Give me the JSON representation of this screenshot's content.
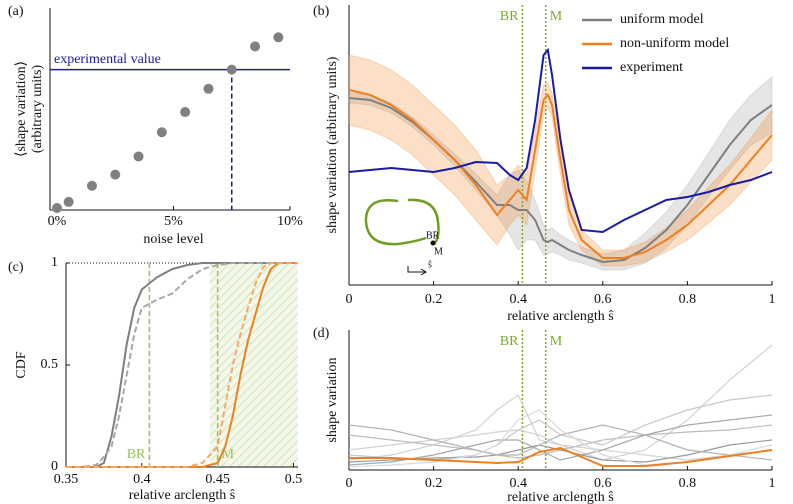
{
  "chart_data": [
    {
      "panel_label": "(a)",
      "type": "scatter",
      "xlabel": "noise level",
      "ylabel": [
        "⟨shape variation⟩",
        "(arbitrary units)"
      ],
      "x": [
        0,
        0.5,
        1.5,
        2.5,
        3.5,
        4.5,
        5.5,
        6.5,
        7.5,
        8.5,
        9.5
      ],
      "values": [
        0.01,
        0.04,
        0.12,
        0.175,
        0.265,
        0.385,
        0.485,
        0.6,
        0.695,
        0.81,
        0.855
      ],
      "color": "#808080",
      "xlim": [
        0,
        10
      ],
      "xticks": [
        {
          "value": 0,
          "label": "0%"
        },
        {
          "value": 5,
          "label": "5%"
        },
        {
          "value": 10,
          "label": "10%"
        }
      ],
      "ylim": [
        0,
        1
      ],
      "reference": {
        "label": "experimental value",
        "value": 0.695,
        "x": 7.5,
        "color": "#1a1aa8"
      }
    },
    {
      "panel_label": "(b)",
      "type": "line",
      "xlabel": "relative arclength ŝ",
      "ylabel": "shape variation (arbitrary units)",
      "x": [
        0,
        0.05,
        0.1,
        0.15,
        0.2,
        0.25,
        0.3,
        0.35,
        0.38,
        0.4,
        0.42,
        0.44,
        0.46,
        0.47,
        0.48,
        0.5,
        0.52,
        0.55,
        0.6,
        0.65,
        0.7,
        0.75,
        0.8,
        0.85,
        0.9,
        0.95,
        1
      ],
      "xlim": [
        0,
        1
      ],
      "xticks": [
        0,
        0.2,
        0.4,
        0.6,
        0.8,
        1
      ],
      "ylim": [
        0,
        28
      ],
      "legend": "upper right",
      "markers": [
        {
          "label": "BR",
          "x": 0.41
        },
        {
          "label": "M",
          "x": 0.465
        }
      ],
      "marker_color": "#7aab2a",
      "inset_labels": [
        "BR",
        "M",
        "ŝ"
      ],
      "series": [
        {
          "name": "uniform model",
          "color": "#7f7f7f",
          "band_color": "rgba(127,127,127,0.2)",
          "values": [
            18.7,
            18.5,
            17.7,
            16.3,
            14.5,
            12.5,
            10.3,
            8.0,
            8.0,
            7.5,
            7.5,
            6.5,
            4.5,
            4.3,
            4.5,
            4.0,
            3.5,
            3.0,
            2.3,
            2.5,
            3.7,
            5.5,
            8.0,
            11.0,
            14.0,
            16.5,
            18.0
          ],
          "band": {
            "upper": [
              19.2,
              19.0,
              18.2,
              16.8,
              15.0,
              13.1,
              11.1,
              9.0,
              11.0,
              11.5,
              10.5,
              8.5,
              6.0,
              5.5,
              5.7,
              5.0,
              4.5,
              3.8,
              3.1,
              3.5,
              5.2,
              7.3,
              10.0,
              13.2,
              16.5,
              19.0,
              20.8
            ],
            "lower": [
              18.2,
              18.0,
              17.2,
              15.8,
              14.0,
              11.9,
              9.5,
              7.0,
              5.0,
              3.5,
              4.5,
              4.5,
              3.0,
              3.1,
              3.3,
              3.0,
              2.5,
              2.2,
              1.5,
              1.5,
              2.2,
              3.7,
              6.0,
              8.8,
              11.5,
              14.0,
              15.2
            ]
          }
        },
        {
          "name": "non-uniform model",
          "color": "#f07f1f",
          "band_color": "rgba(240,127,31,0.25)",
          "values": [
            19.5,
            19.0,
            18.0,
            16.5,
            14.5,
            12.5,
            10.0,
            7.0,
            8.5,
            9.5,
            8.5,
            13.5,
            18.5,
            19.0,
            18.0,
            12.5,
            7.5,
            4.5,
            2.7,
            2.7,
            3.3,
            4.5,
            6.0,
            8.0,
            10.0,
            12.5,
            15.0
          ],
          "band": {
            "upper": [
              23.0,
              22.5,
              21.5,
              20.0,
              18.0,
              16.0,
              13.5,
              10.0,
              11.0,
              12.0,
              11.0,
              15.5,
              20.0,
              20.2,
              19.2,
              14.0,
              9.0,
              5.5,
              3.5,
              3.5,
              4.3,
              5.7,
              7.5,
              9.8,
              12.0,
              14.7,
              17.5
            ],
            "lower": [
              16.0,
              15.5,
              14.5,
              13.0,
              11.0,
              9.0,
              6.5,
              4.0,
              6.0,
              7.0,
              6.0,
              11.5,
              17.0,
              17.8,
              16.8,
              11.0,
              6.0,
              3.5,
              1.9,
              1.9,
              2.3,
              3.3,
              4.5,
              6.2,
              8.0,
              10.3,
              12.5
            ]
          }
        },
        {
          "name": "experiment",
          "color": "#1a1aa8",
          "values": [
            11.3,
            11.5,
            11.7,
            11.5,
            11.3,
            11.7,
            12.3,
            12.2,
            11.0,
            10.5,
            11.7,
            16.5,
            23.0,
            23.5,
            21.0,
            14.5,
            9.5,
            5.5,
            5.3,
            6.5,
            7.5,
            8.5,
            8.8,
            9.3,
            10.0,
            10.5,
            11.3
          ]
        }
      ]
    },
    {
      "panel_label": "(c)",
      "type": "line",
      "xlabel": "relative arclength ŝ",
      "ylabel": "CDF",
      "xlim": [
        0.35,
        0.503
      ],
      "xticks": [
        0.35,
        0.4,
        0.45,
        0.5
      ],
      "ylim": [
        0,
        1
      ],
      "yticks": [
        0,
        0.5,
        1
      ],
      "reference_line": 1,
      "shaded_range": [
        0.445,
        0.503
      ],
      "markers": [
        {
          "label": "BR",
          "x": 0.405
        },
        {
          "label": "M",
          "x": 0.45
        }
      ],
      "marker_color": "#9cc05a",
      "series": [
        {
          "color": "#7f7f7f",
          "x": [
            0.35,
            0.37,
            0.375,
            0.38,
            0.385,
            0.39,
            0.395,
            0.4,
            0.405,
            0.41,
            0.42,
            0.43,
            0.44,
            0.503
          ],
          "values": [
            0,
            0,
            0.02,
            0.15,
            0.35,
            0.6,
            0.78,
            0.87,
            0.9,
            0.93,
            0.97,
            0.99,
            1,
            1
          ]
        },
        {
          "color": "#a8a8a8",
          "dashed": true,
          "x": [
            0.35,
            0.36,
            0.37,
            0.375,
            0.38,
            0.385,
            0.39,
            0.395,
            0.4,
            0.41,
            0.42,
            0.43,
            0.44,
            0.45,
            0.46,
            0.503
          ],
          "values": [
            0,
            0,
            0.01,
            0.05,
            0.1,
            0.25,
            0.45,
            0.65,
            0.78,
            0.82,
            0.85,
            0.92,
            0.97,
            0.99,
            1,
            1
          ]
        },
        {
          "color": "#f07f1f",
          "x": [
            0.35,
            0.44,
            0.45,
            0.455,
            0.46,
            0.465,
            0.47,
            0.475,
            0.48,
            0.485,
            0.49,
            0.503
          ],
          "values": [
            0,
            0,
            0.02,
            0.1,
            0.25,
            0.45,
            0.62,
            0.75,
            0.88,
            0.97,
            1,
            1
          ]
        },
        {
          "color": "#f5a868",
          "dashed": true,
          "x": [
            0.35,
            0.43,
            0.44,
            0.45,
            0.455,
            0.46,
            0.465,
            0.47,
            0.475,
            0.48,
            0.485,
            0.503
          ],
          "values": [
            0,
            0,
            0.02,
            0.1,
            0.3,
            0.5,
            0.65,
            0.78,
            0.9,
            0.98,
            1,
            1
          ]
        }
      ]
    },
    {
      "panel_label": "(d)",
      "type": "line",
      "xlabel": "relative arclength ŝ",
      "ylabel": "shape variation",
      "x": [
        0,
        0.1,
        0.2,
        0.3,
        0.35,
        0.4,
        0.45,
        0.5,
        0.6,
        0.7,
        0.8,
        0.9,
        1
      ],
      "xlim": [
        0,
        1
      ],
      "xticks": [
        0,
        0.2,
        0.4,
        0.6,
        0.8,
        1
      ],
      "ylim": [
        0,
        14
      ],
      "markers": [
        {
          "label": "BR",
          "x": 0.41
        },
        {
          "label": "M",
          "x": 0.465
        }
      ],
      "marker_color": "#7aab2a",
      "series": [
        {
          "color": "#d2d2d2",
          "values": [
            2.0,
            2.5,
            3.0,
            3.5,
            3.8,
            4.0,
            3.5,
            2.5,
            1.0,
            2.0,
            5.0,
            9.0,
            12.5
          ]
        },
        {
          "color": "#d2d2d2",
          "values": [
            1.0,
            1.5,
            2.5,
            4.0,
            6.0,
            7.5,
            3.0,
            2.5,
            2.0,
            1.5,
            1.0,
            1.5,
            2.0
          ]
        },
        {
          "color": "#bdbdbd",
          "values": [
            3.5,
            3.0,
            2.5,
            2.0,
            1.5,
            1.2,
            1.5,
            2.0,
            3.0,
            3.5,
            3.8,
            4.0,
            4.5
          ]
        },
        {
          "color": "#a8a8a8",
          "values": [
            0.5,
            0.8,
            1.5,
            2.5,
            3.0,
            3.0,
            2.0,
            1.0,
            2.0,
            3.5,
            4.5,
            5.0,
            5.5
          ]
        },
        {
          "color": "#c8c8c8",
          "values": [
            1.5,
            1.2,
            1.0,
            1.5,
            2.5,
            4.0,
            5.0,
            3.5,
            2.5,
            4.5,
            6.0,
            7.0,
            7.5
          ]
        },
        {
          "color": "#9a9a9a",
          "values": [
            0.8,
            1.0,
            1.2,
            1.3,
            1.5,
            2.0,
            2.5,
            2.0,
            1.0,
            0.8,
            1.5,
            2.5,
            3.0
          ]
        },
        {
          "color": "#b4b4b4",
          "values": [
            4.5,
            4.0,
            3.0,
            2.0,
            1.5,
            1.5,
            2.5,
            3.5,
            4.5,
            3.5,
            2.0,
            1.5,
            1.0
          ]
        },
        {
          "color": "#d9d9d9",
          "values": [
            0.3,
            0.5,
            0.8,
            1.5,
            2.5,
            5.0,
            6.0,
            4.0,
            1.5,
            0.5,
            0.8,
            1.5,
            2.5
          ]
        },
        {
          "color": "#f07f1f",
          "values": [
            1.2,
            1.2,
            1.0,
            0.8,
            0.7,
            0.8,
            1.8,
            2.2,
            0.4,
            0.4,
            0.8,
            1.4,
            2.0
          ]
        }
      ]
    }
  ]
}
